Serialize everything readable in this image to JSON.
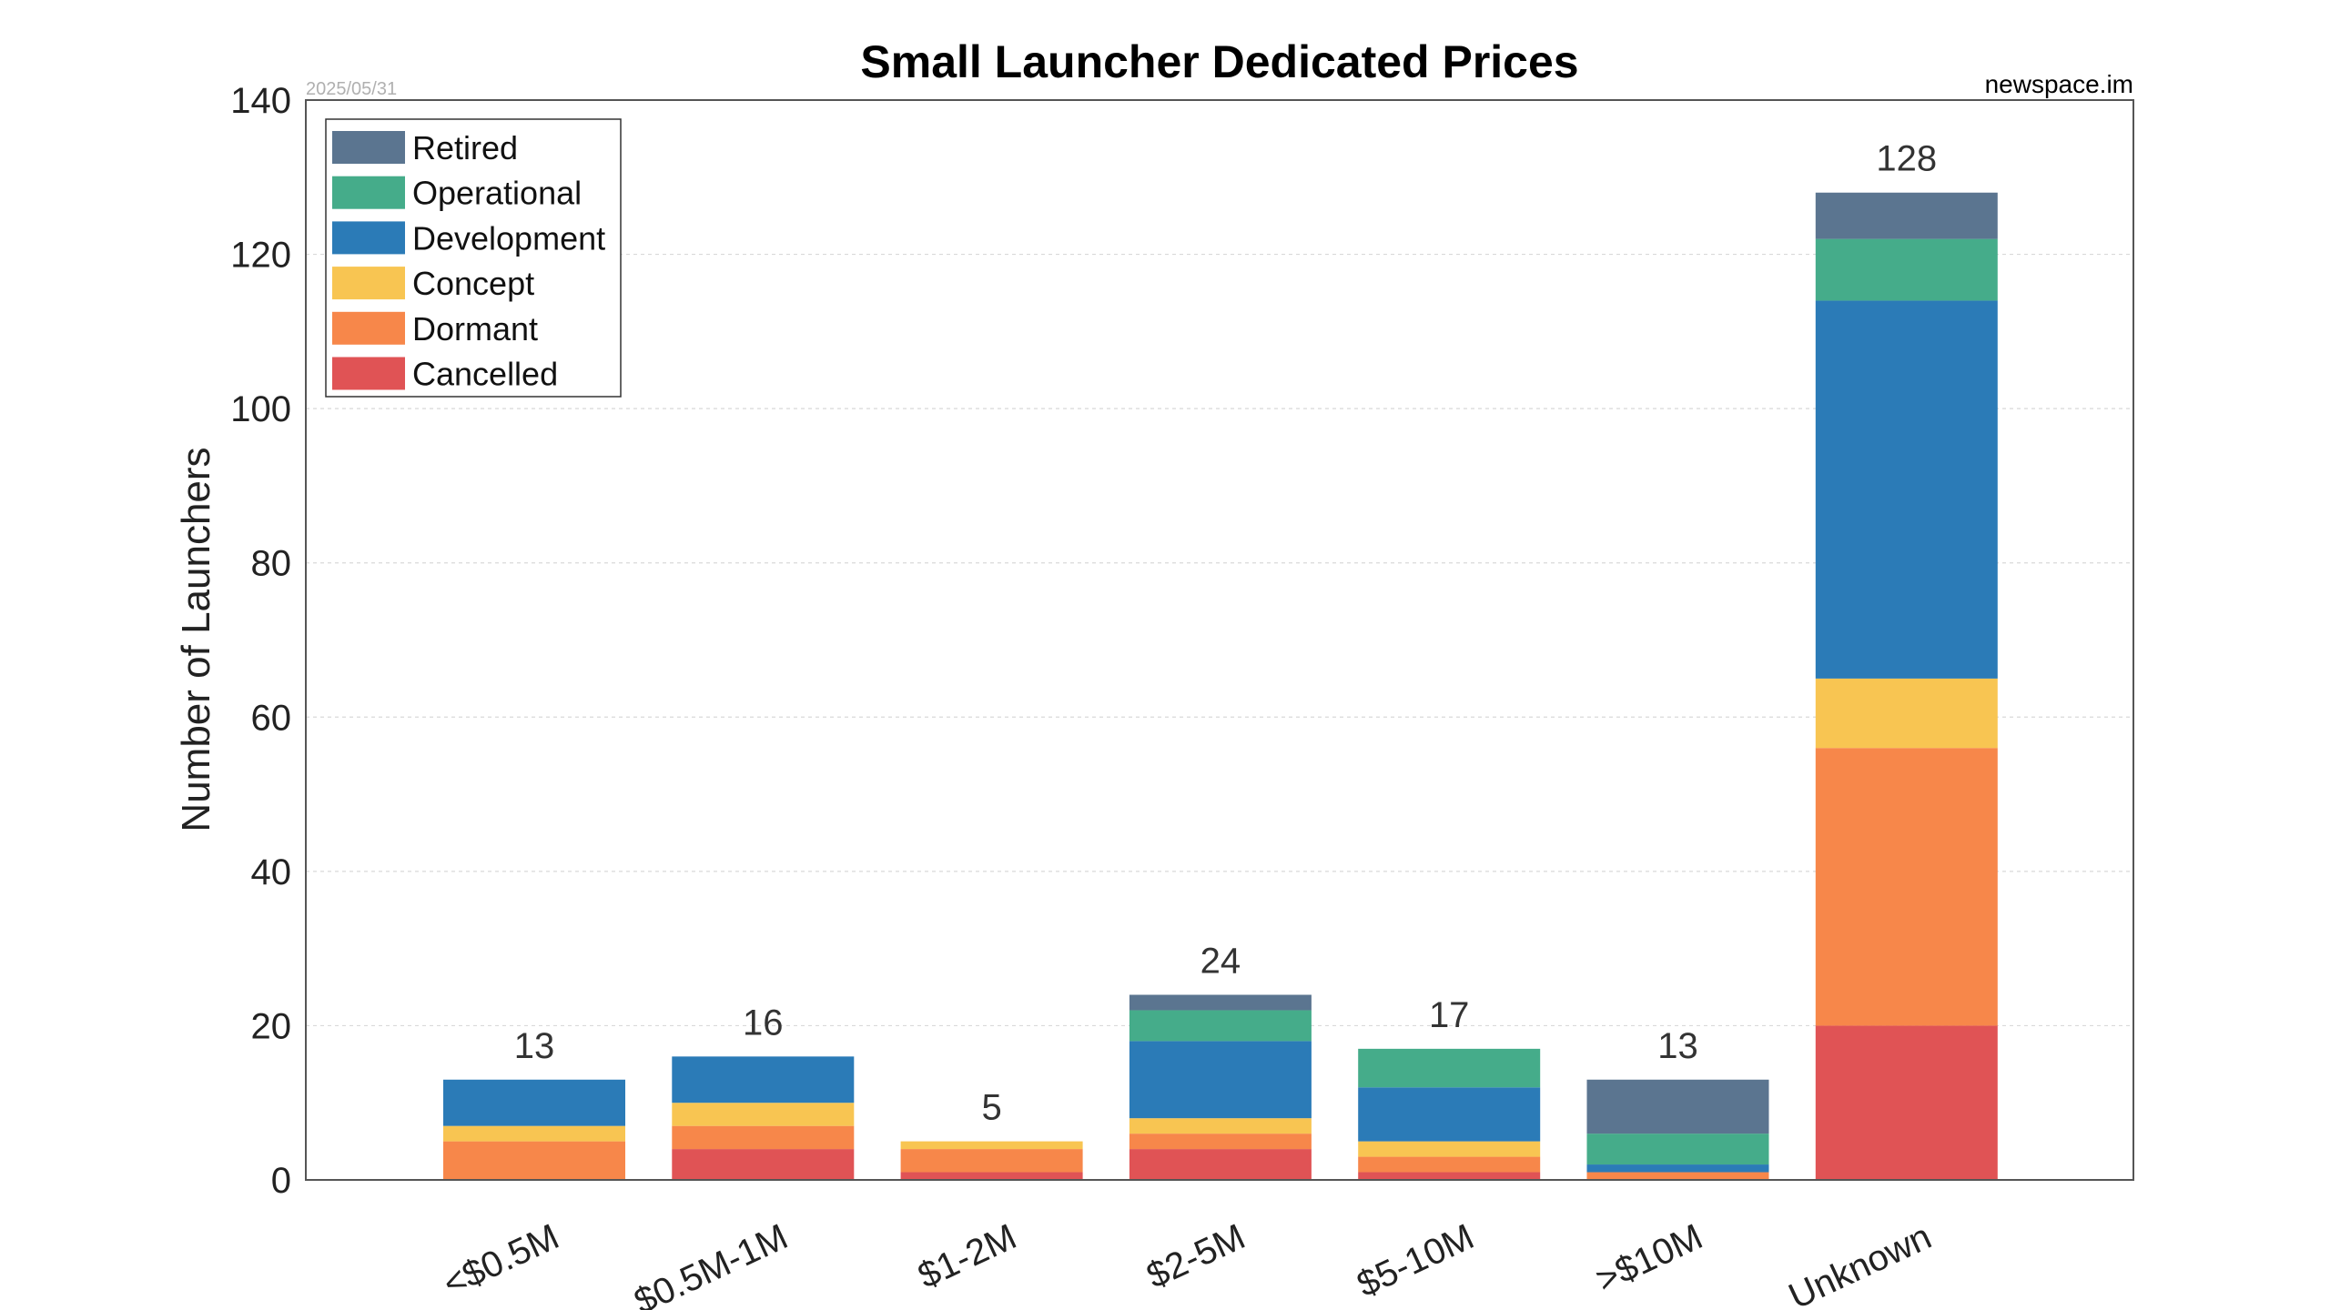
{
  "header": {
    "title": "Small Launcher Dedicated Prices",
    "date": "2025/05/31",
    "source": "newspace.im"
  },
  "chart_data": {
    "type": "bar",
    "stacked": true,
    "title": "Small Launcher Dedicated Prices",
    "xlabel": "",
    "ylabel": "Number of Launchers",
    "ylim": [
      0,
      140
    ],
    "yticks": [
      0,
      20,
      40,
      60,
      80,
      100,
      120,
      140
    ],
    "grid": true,
    "legend_position": "top-left",
    "categories": [
      "<$0.5M",
      "$0.5M-1M",
      "$1-2M",
      "$2-5M",
      "$5-10M",
      ">$10M",
      "Unknown"
    ],
    "series": [
      {
        "name": "Cancelled",
        "color": "#e05355",
        "values": [
          0,
          4,
          1,
          4,
          1,
          0,
          20
        ]
      },
      {
        "name": "Dormant",
        "color": "#f7874a",
        "values": [
          5,
          3,
          3,
          2,
          2,
          1,
          36
        ]
      },
      {
        "name": "Concept",
        "color": "#f8c552",
        "values": [
          2,
          3,
          1,
          2,
          2,
          0,
          9
        ]
      },
      {
        "name": "Development",
        "color": "#2b7bb7",
        "values": [
          6,
          6,
          0,
          10,
          7,
          1,
          49
        ]
      },
      {
        "name": "Operational",
        "color": "#45ac8a",
        "values": [
          0,
          0,
          0,
          4,
          5,
          4,
          8
        ]
      },
      {
        "name": "Retired",
        "color": "#5b7590",
        "values": [
          0,
          0,
          0,
          2,
          0,
          7,
          6
        ]
      }
    ],
    "legend_order": [
      "Retired",
      "Operational",
      "Development",
      "Concept",
      "Dormant",
      "Cancelled"
    ],
    "totals": [
      13,
      16,
      5,
      24,
      17,
      13,
      128
    ]
  }
}
